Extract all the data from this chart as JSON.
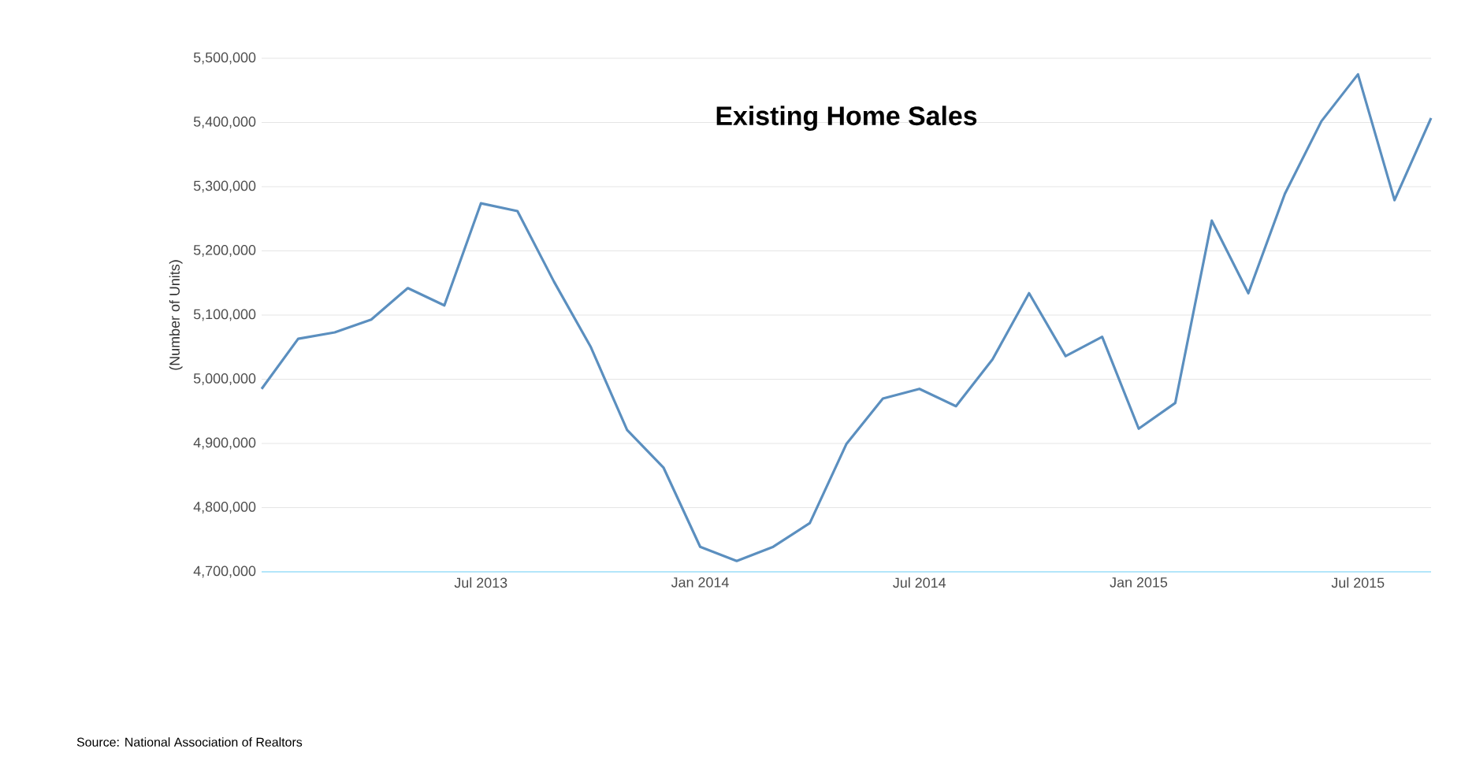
{
  "chart_data": {
    "type": "line",
    "title": "Existing Home Sales",
    "ylabel": "(Number of Units)",
    "x": [
      "2013-01",
      "2013-02",
      "2013-03",
      "2013-04",
      "2013-05",
      "2013-06",
      "2013-07",
      "2013-08",
      "2013-09",
      "2013-10",
      "2013-11",
      "2013-12",
      "2014-01",
      "2014-02",
      "2014-03",
      "2014-04",
      "2014-05",
      "2014-06",
      "2014-07",
      "2014-08",
      "2014-09",
      "2014-10",
      "2014-11",
      "2014-12",
      "2015-01",
      "2015-02",
      "2015-03",
      "2015-04",
      "2015-05",
      "2015-06",
      "2015-07",
      "2015-08",
      "2015-09"
    ],
    "series": [
      {
        "color": "#5b8fbf",
        "values": [
          4985000,
          5063000,
          5073000,
          5093000,
          5142000,
          5115000,
          5274000,
          5262000,
          5152000,
          5051000,
          4921000,
          4862000,
          4739000,
          4717000,
          4739000,
          4776000,
          4899000,
          4970000,
          4985000,
          4958000,
          5031000,
          5134000,
          5036000,
          5066000,
          4923000,
          4963000,
          5247000,
          5134000,
          5289000,
          5402000,
          5475000,
          5279000,
          5407000
        ]
      }
    ],
    "xlim": [
      "2013-01",
      "2015-09"
    ],
    "xticks": [
      {
        "value": "2013-07",
        "label": "Jul 2013"
      },
      {
        "value": "2014-01",
        "label": "Jan 2014"
      },
      {
        "value": "2014-07",
        "label": "Jul 2014"
      },
      {
        "value": "2015-01",
        "label": "Jan 2015"
      },
      {
        "value": "2015-07",
        "label": "Jul 2015"
      }
    ],
    "ylim": [
      4700000,
      5500000
    ],
    "yticks": [
      {
        "value": 4700000,
        "label": "4,700,000"
      },
      {
        "value": 4800000,
        "label": "4,800,000"
      },
      {
        "value": 4900000,
        "label": "4,900,000"
      },
      {
        "value": 5000000,
        "label": "5,000,000"
      },
      {
        "value": 5100000,
        "label": "5,100,000"
      },
      {
        "value": 5200000,
        "label": "5,200,000"
      },
      {
        "value": 5300000,
        "label": "5,300,000"
      },
      {
        "value": 5400000,
        "label": "5,400,000"
      },
      {
        "value": 5500000,
        "label": "5,500,000"
      }
    ],
    "grid": "y",
    "marker": "none",
    "line_style": "solid",
    "legend": false,
    "annotations": [
      "Source: National Association of Realtors"
    ]
  }
}
